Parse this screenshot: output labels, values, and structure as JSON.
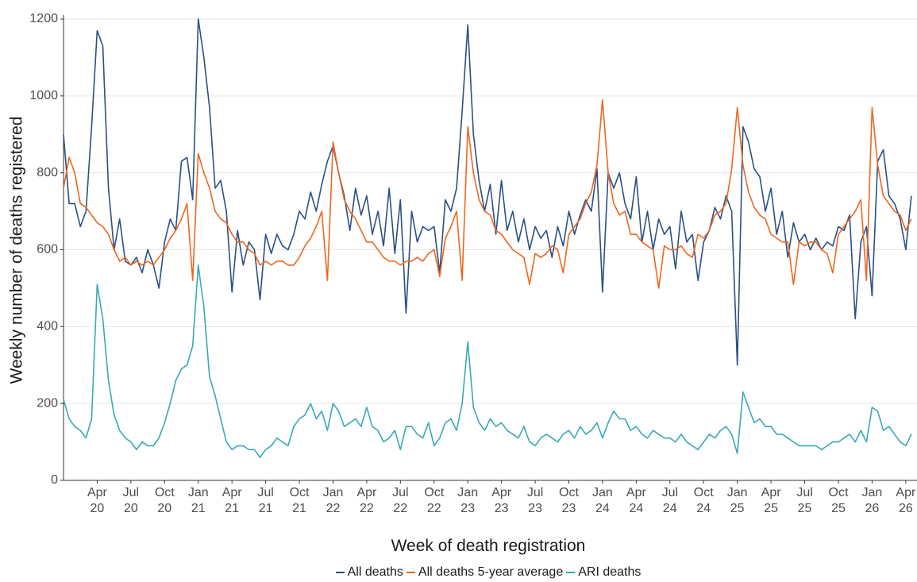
{
  "chart_data": {
    "type": "line",
    "xlabel": "Week of death registration",
    "ylabel": "Weekly number of deaths registered",
    "xlim": [
      0,
      76
    ],
    "ylim": [
      0,
      1200
    ],
    "yticks": [
      0,
      200,
      400,
      600,
      800,
      1000,
      1200
    ],
    "grid": true,
    "legend": "bottom",
    "xticks": [
      {
        "value": 3,
        "label": "Apr\n20"
      },
      {
        "value": 6,
        "label": "Jul\n20"
      },
      {
        "value": 9,
        "label": "Oct\n20"
      },
      {
        "value": 12,
        "label": "Jan\n21"
      },
      {
        "value": 15,
        "label": "Apr\n21"
      },
      {
        "value": 18,
        "label": "Jul\n21"
      },
      {
        "value": 21,
        "label": "Oct\n21"
      },
      {
        "value": 24,
        "label": "Jan\n22"
      },
      {
        "value": 27,
        "label": "Apr\n22"
      },
      {
        "value": 30,
        "label": "Jul\n22"
      },
      {
        "value": 33,
        "label": "Oct\n22"
      },
      {
        "value": 36,
        "label": "Jan\n23"
      },
      {
        "value": 39,
        "label": "Apr\n23"
      },
      {
        "value": 42,
        "label": "Jul\n23"
      },
      {
        "value": 45,
        "label": "Oct\n23"
      },
      {
        "value": 48,
        "label": "Jan\n24"
      },
      {
        "value": 51,
        "label": "Apr\n24"
      },
      {
        "value": 54,
        "label": "Jul\n24"
      },
      {
        "value": 57,
        "label": "Oct\n24"
      },
      {
        "value": 60,
        "label": "Jan\n25"
      },
      {
        "value": 63,
        "label": "Apr\n25"
      },
      {
        "value": 66,
        "label": "Jul\n25"
      },
      {
        "value": 69,
        "label": "Oct\n25"
      },
      {
        "value": 72,
        "label": "Jan\n26"
      },
      {
        "value": 75,
        "label": "Apr\n26"
      }
    ],
    "x": [
      0,
      0.5,
      1,
      1.5,
      2,
      2.5,
      3,
      3.5,
      4,
      4.5,
      5,
      5.5,
      6,
      6.5,
      7,
      7.5,
      8,
      8.5,
      9,
      9.5,
      10,
      10.5,
      11,
      11.5,
      12,
      12.5,
      13,
      13.5,
      14,
      14.5,
      15,
      15.5,
      16,
      16.5,
      17,
      17.5,
      18,
      18.5,
      19,
      19.5,
      20,
      20.5,
      21,
      21.5,
      22,
      22.5,
      23,
      23.5,
      24,
      24.5,
      25,
      25.5,
      26,
      26.5,
      27,
      27.5,
      28,
      28.5,
      29,
      29.5,
      30,
      30.5,
      31,
      31.5,
      32,
      32.5,
      33,
      33.5,
      34,
      34.5,
      35,
      35.5,
      36,
      36.5,
      37,
      37.5,
      38,
      38.5,
      39,
      39.5,
      40,
      40.5,
      41,
      41.5,
      42,
      42.5,
      43,
      43.5,
      44,
      44.5,
      45,
      45.5,
      46,
      46.5,
      47,
      47.5,
      48,
      48.5,
      49,
      49.5,
      50,
      50.5,
      51,
      51.5,
      52,
      52.5,
      53,
      53.5,
      54,
      54.5,
      55,
      55.5,
      56,
      56.5,
      57,
      57.5,
      58,
      58.5,
      59,
      59.5,
      60,
      60.5,
      61,
      61.5,
      62,
      62.5,
      63,
      63.5,
      64,
      64.5,
      65,
      65.5,
      66,
      66.5,
      67,
      67.5,
      68,
      68.5,
      69,
      69.5,
      70,
      70.5,
      71,
      71.5,
      72,
      72.5,
      73,
      73.5,
      74,
      74.5,
      75,
      75.5
    ],
    "series": [
      {
        "name": "All deaths",
        "color": "#2c4f85",
        "values": [
          900,
          720,
          720,
          660,
          700,
          920,
          1170,
          1130,
          760,
          600,
          680,
          570,
          560,
          580,
          540,
          600,
          560,
          500,
          620,
          680,
          650,
          830,
          840,
          730,
          1200,
          1100,
          970,
          760,
          780,
          700,
          490,
          650,
          560,
          620,
          600,
          470,
          640,
          590,
          640,
          610,
          600,
          640,
          700,
          680,
          750,
          700,
          770,
          830,
          870,
          800,
          740,
          650,
          760,
          690,
          740,
          640,
          700,
          610,
          760,
          590,
          730,
          435,
          700,
          620,
          660,
          650,
          660,
          540,
          730,
          700,
          760,
          960,
          1185,
          900,
          780,
          700,
          770,
          640,
          780,
          650,
          700,
          620,
          680,
          600,
          660,
          630,
          650,
          580,
          660,
          610,
          700,
          640,
          690,
          730,
          700,
          810,
          490,
          800,
          760,
          800,
          720,
          680,
          790,
          620,
          700,
          600,
          680,
          640,
          660,
          550,
          700,
          620,
          640,
          520,
          620,
          650,
          710,
          680,
          740,
          700,
          300,
          920,
          880,
          810,
          790,
          700,
          760,
          640,
          700,
          580,
          670,
          620,
          640,
          600,
          630,
          600,
          620,
          610,
          660,
          650,
          690,
          420,
          620,
          660,
          480,
          830,
          860,
          740,
          720,
          680,
          600,
          740
        ]
      },
      {
        "name": "All deaths 5-year average",
        "color": "#f0661f",
        "values": [
          760,
          840,
          800,
          720,
          710,
          690,
          670,
          660,
          640,
          600,
          570,
          580,
          560,
          570,
          560,
          570,
          560,
          580,
          600,
          630,
          650,
          680,
          720,
          520,
          850,
          800,
          760,
          700,
          680,
          670,
          640,
          620,
          620,
          600,
          590,
          560,
          570,
          560,
          570,
          570,
          560,
          560,
          580,
          610,
          630,
          660,
          700,
          520,
          880,
          800,
          730,
          700,
          680,
          650,
          620,
          620,
          600,
          580,
          570,
          570,
          560,
          570,
          570,
          580,
          570,
          590,
          600,
          530,
          630,
          660,
          700,
          520,
          920,
          800,
          730,
          700,
          690,
          650,
          640,
          620,
          600,
          590,
          580,
          510,
          590,
          580,
          590,
          610,
          600,
          540,
          640,
          660,
          680,
          720,
          750,
          820,
          990,
          800,
          720,
          690,
          700,
          640,
          640,
          620,
          610,
          600,
          500,
          610,
          600,
          600,
          610,
          590,
          580,
          640,
          630,
          650,
          690,
          700,
          720,
          810,
          970,
          820,
          750,
          710,
          690,
          680,
          640,
          630,
          620,
          620,
          510,
          620,
          610,
          620,
          620,
          600,
          590,
          540,
          640,
          660,
          680,
          700,
          730,
          520,
          970,
          820,
          740,
          720,
          700,
          690,
          650,
          680
        ]
      },
      {
        "name": "ARI deaths",
        "color": "#3aa8b6",
        "values": [
          210,
          160,
          140,
          130,
          110,
          160,
          510,
          420,
          260,
          170,
          130,
          110,
          100,
          80,
          100,
          90,
          90,
          110,
          150,
          200,
          260,
          290,
          300,
          350,
          560,
          450,
          270,
          220,
          160,
          100,
          80,
          90,
          90,
          80,
          80,
          60,
          80,
          90,
          110,
          100,
          90,
          140,
          160,
          170,
          200,
          160,
          180,
          130,
          200,
          180,
          140,
          150,
          160,
          140,
          190,
          140,
          130,
          100,
          110,
          130,
          80,
          140,
          140,
          120,
          110,
          150,
          90,
          110,
          150,
          160,
          130,
          200,
          360,
          190,
          150,
          130,
          160,
          140,
          150,
          130,
          120,
          110,
          140,
          100,
          90,
          110,
          120,
          110,
          100,
          120,
          130,
          110,
          140,
          120,
          130,
          150,
          110,
          150,
          180,
          160,
          160,
          130,
          140,
          120,
          110,
          130,
          120,
          110,
          110,
          100,
          120,
          100,
          90,
          80,
          100,
          120,
          110,
          130,
          140,
          120,
          70,
          230,
          190,
          150,
          160,
          140,
          140,
          120,
          120,
          110,
          100,
          90,
          90,
          90,
          90,
          80,
          90,
          100,
          100,
          110,
          120,
          100,
          130,
          100,
          190,
          180,
          130,
          140,
          120,
          100,
          90,
          120
        ]
      }
    ]
  }
}
